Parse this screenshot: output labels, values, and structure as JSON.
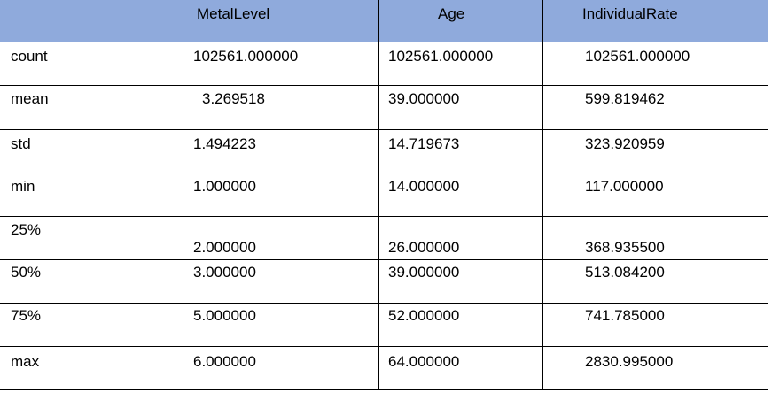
{
  "table": {
    "headers": [
      "",
      "MetalLevel",
      "Age",
      "IndividualRate"
    ],
    "rows": [
      {
        "label": "count",
        "values": [
          "102561.000000",
          "102561.000000",
          "102561.000000"
        ]
      },
      {
        "label": "mean",
        "values": [
          "3.269518",
          "39.000000",
          "599.819462"
        ]
      },
      {
        "label": "std",
        "values": [
          "1.494223",
          "14.719673",
          "323.920959"
        ]
      },
      {
        "label": "min",
        "values": [
          "1.000000",
          "14.000000",
          "117.000000"
        ]
      },
      {
        "label": "25%",
        "values": [
          "2.000000",
          "26.000000",
          "368.935500"
        ]
      },
      {
        "label": "50%",
        "values": [
          "3.000000",
          "39.000000",
          "513.084200"
        ]
      },
      {
        "label": "75%",
        "values": [
          "5.000000",
          "52.000000",
          "741.785000"
        ]
      },
      {
        "label": "max",
        "values": [
          "6.000000",
          "64.000000",
          "2830.995000"
        ]
      }
    ]
  }
}
